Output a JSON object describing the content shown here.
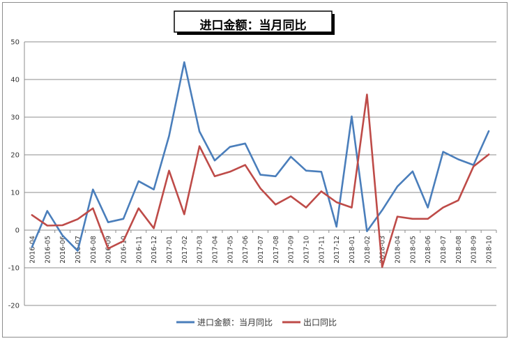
{
  "chart_data": {
    "type": "line",
    "title": "进口金额：当月同比",
    "categories": [
      "2016-04",
      "2016-05",
      "2016-06",
      "2016-07",
      "2016-08",
      "2016-09",
      "2016-10",
      "2016-11",
      "2016-12",
      "2017-01",
      "2017-02",
      "2017-03",
      "2017-04",
      "2017-05",
      "2017-06",
      "2017-07",
      "2017-08",
      "2017-09",
      "2017-10",
      "2017-11",
      "2017-12",
      "2018-01",
      "2018-02",
      "2018-03",
      "2018-04",
      "2018-05",
      "2018-06",
      "2018-07",
      "2018-08",
      "2018-09",
      "2018-10"
    ],
    "ylim": [
      -20,
      50
    ],
    "yticks": [
      -20,
      -10,
      0,
      10,
      20,
      30,
      40,
      50
    ],
    "grid": true,
    "legend_position": "bottom",
    "series": [
      {
        "name": "进口金额：当月同比",
        "color": "#4a7ebb",
        "values": [
          -4.5,
          5.1,
          -1.4,
          -5.5,
          10.8,
          2.1,
          3.0,
          13.0,
          10.8,
          25.0,
          44.6,
          26.2,
          18.5,
          22.1,
          23.0,
          14.7,
          14.3,
          19.5,
          15.8,
          15.5,
          0.9,
          30.2,
          -0.3,
          5.3,
          11.6,
          15.6,
          6.0,
          20.8,
          18.8,
          17.3,
          26.3
        ]
      },
      {
        "name": "出口同比",
        "color": "#be4b48",
        "values": [
          4.0,
          1.2,
          1.3,
          2.9,
          5.8,
          -4.9,
          -2.9,
          5.8,
          0.5,
          15.8,
          4.2,
          22.3,
          14.3,
          15.5,
          17.3,
          11.1,
          6.8,
          9.0,
          6.0,
          10.3,
          7.4,
          6.0,
          36.0,
          -9.8,
          3.6,
          3.0,
          3.0,
          6.0,
          7.9,
          16.9,
          20.1
        ]
      }
    ]
  }
}
